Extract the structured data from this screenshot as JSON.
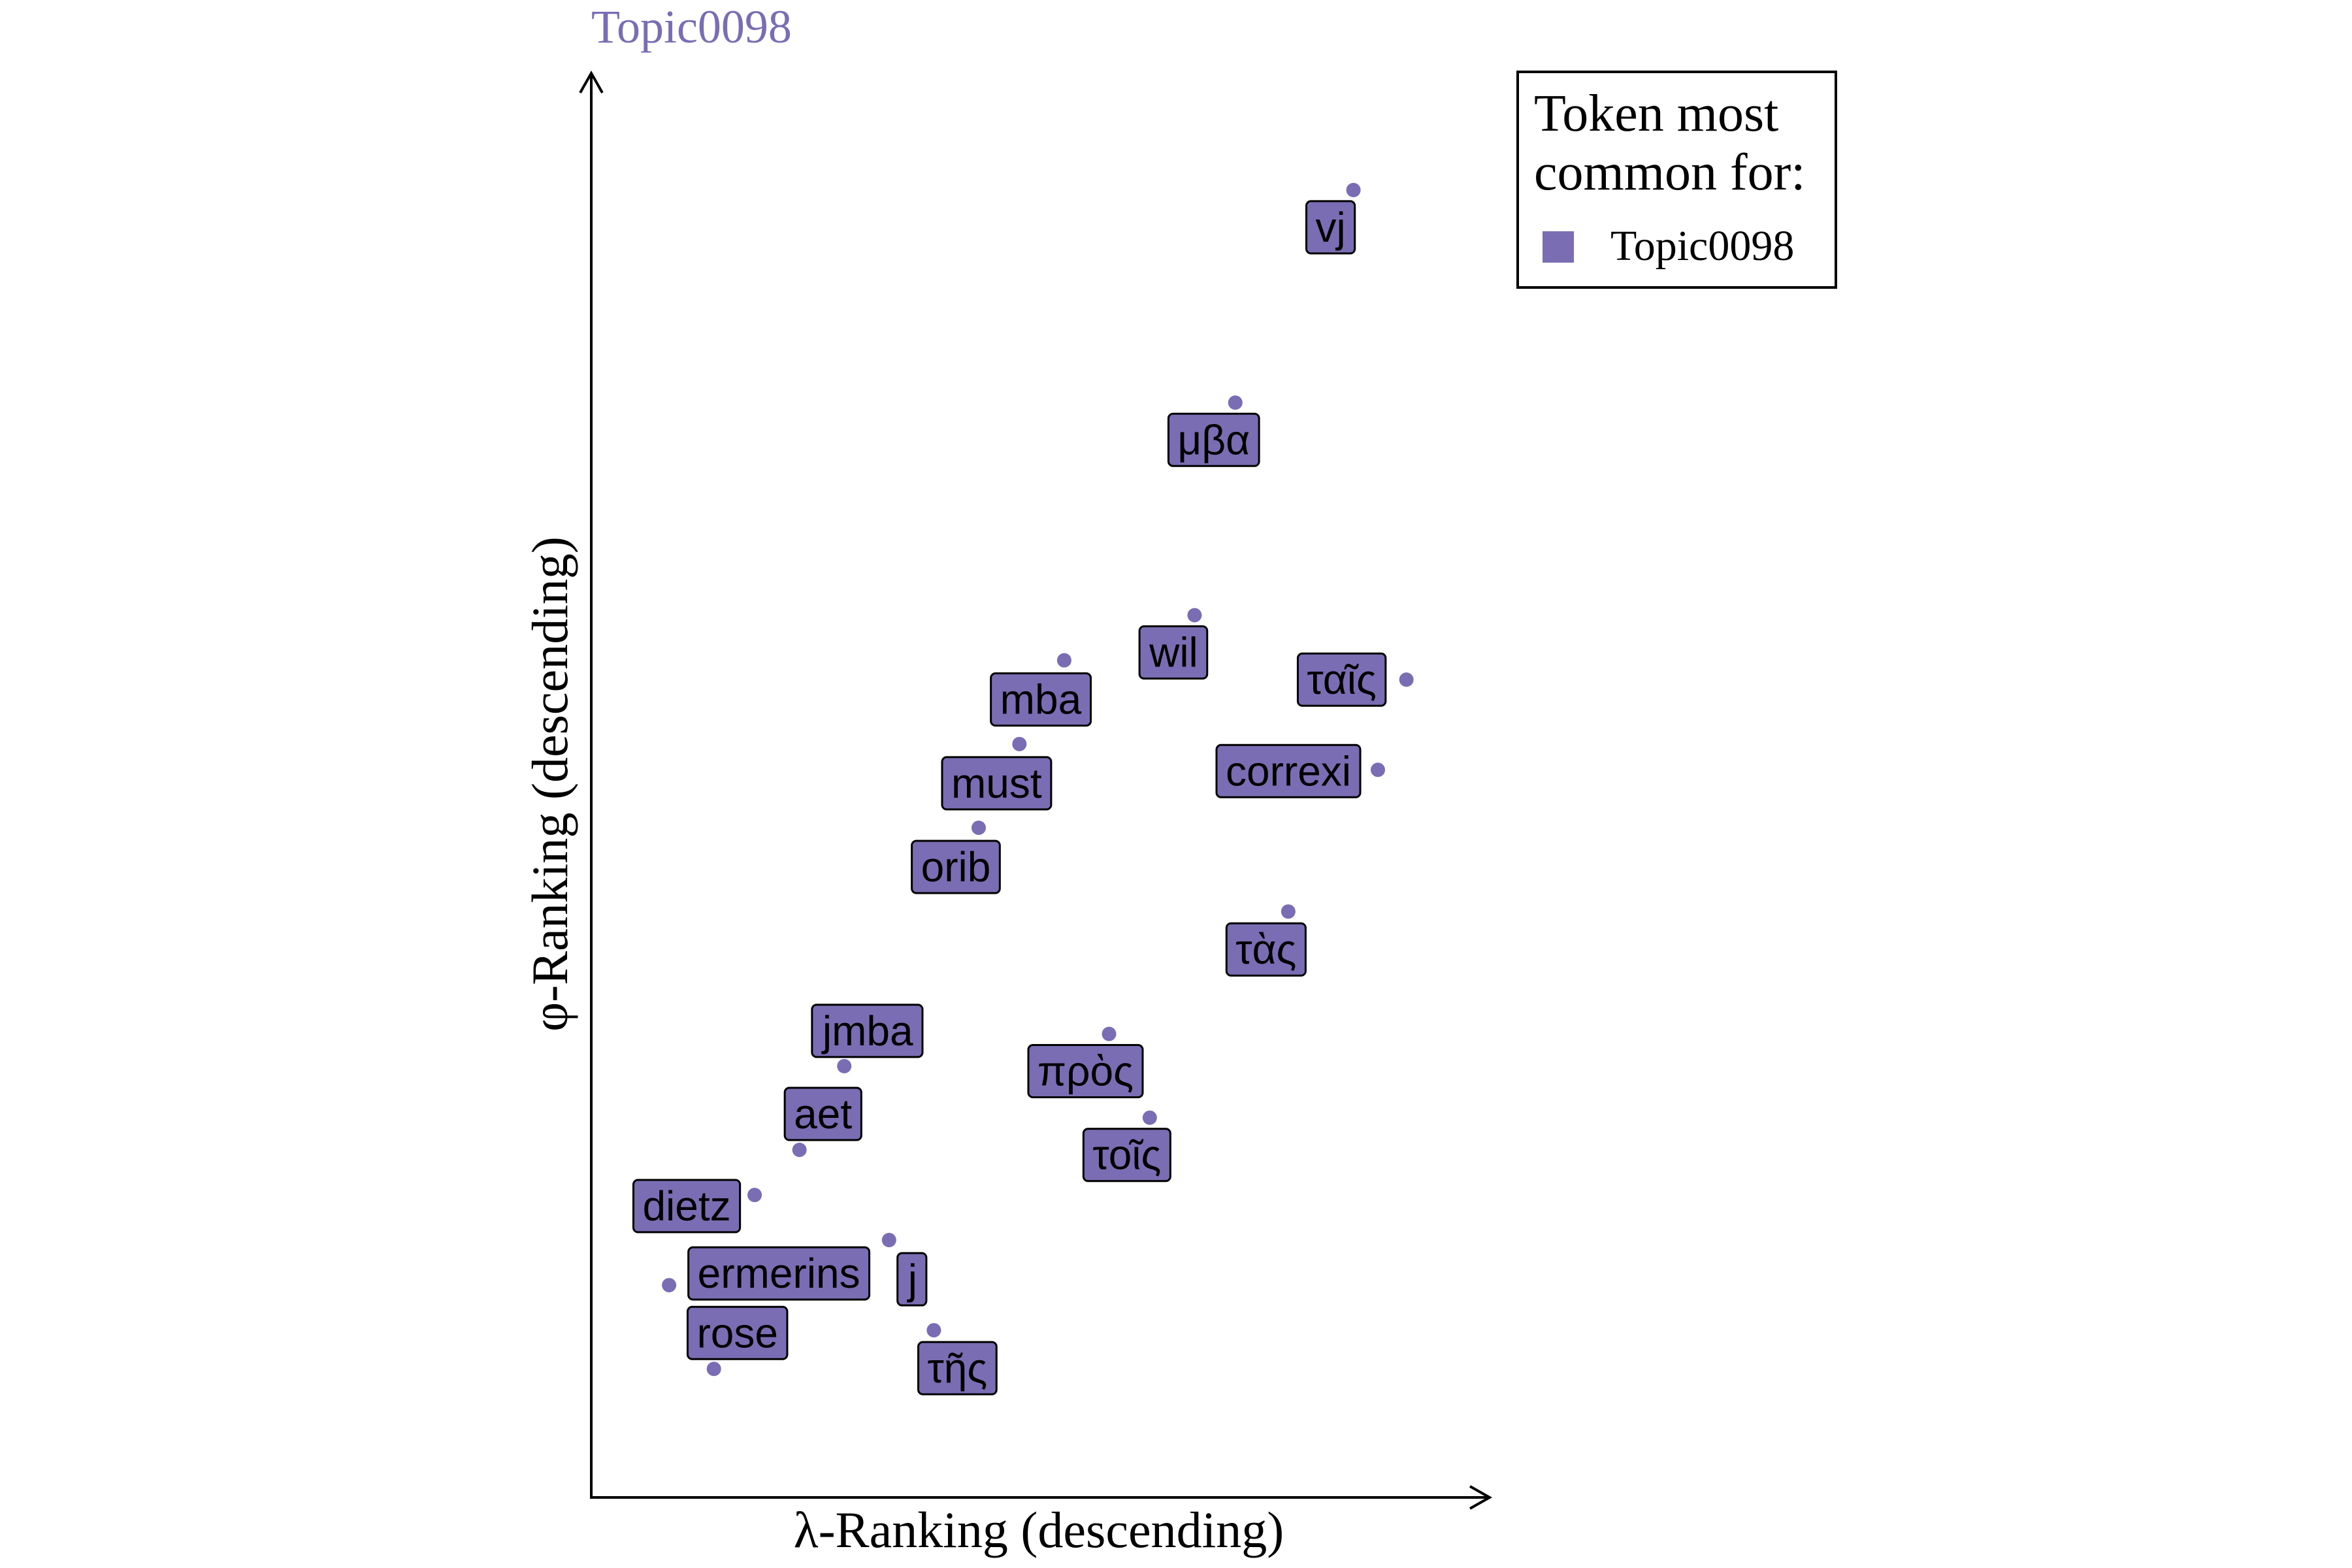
{
  "chart_data": {
    "type": "scatter",
    "title": "Topic0098",
    "xlabel": "λ-Ranking (descending)",
    "ylabel": "φ-Ranking (descending)",
    "accent_color": "#7b6db3",
    "legend": {
      "title_line1": "Token most",
      "title_line2": "common for:",
      "entries": [
        "Topic0098"
      ],
      "placement": "top-right"
    },
    "xlim": [
      0,
      20
    ],
    "ylim": [
      0,
      20
    ],
    "grid": false,
    "series": [
      {
        "name": "Topic0098",
        "points": [
          {
            "label": "vj",
            "x": 17.7,
            "y": 19.2
          },
          {
            "label": "μβα",
            "x": 14.8,
            "y": 15.9
          },
          {
            "label": "wil",
            "x": 13.8,
            "y": 12.6
          },
          {
            "label": "mba",
            "x": 10.6,
            "y": 11.9
          },
          {
            "label": "ταῖς",
            "x": 19.0,
            "y": 11.6
          },
          {
            "label": "must",
            "x": 9.5,
            "y": 10.6
          },
          {
            "label": "correxi",
            "x": 18.3,
            "y": 10.2
          },
          {
            "label": "orib",
            "x": 8.5,
            "y": 9.3
          },
          {
            "label": "τὰς",
            "x": 16.1,
            "y": 8.0
          },
          {
            "label": "πρὸς",
            "x": 11.7,
            "y": 6.1
          },
          {
            "label": "jmba",
            "x": 5.2,
            "y": 5.6
          },
          {
            "label": "τοῖς",
            "x": 12.7,
            "y": 4.8
          },
          {
            "label": "aet",
            "x": 4.1,
            "y": 4.3
          },
          {
            "label": "dietz",
            "x": 3.0,
            "y": 3.6
          },
          {
            "label": "j",
            "x": 6.3,
            "y": 2.9
          },
          {
            "label": "ermerins",
            "x": 0.9,
            "y": 2.2
          },
          {
            "label": "τῆς",
            "x": 7.4,
            "y": 1.5
          },
          {
            "label": "rose",
            "x": 2.0,
            "y": 0.9
          }
        ]
      }
    ]
  }
}
